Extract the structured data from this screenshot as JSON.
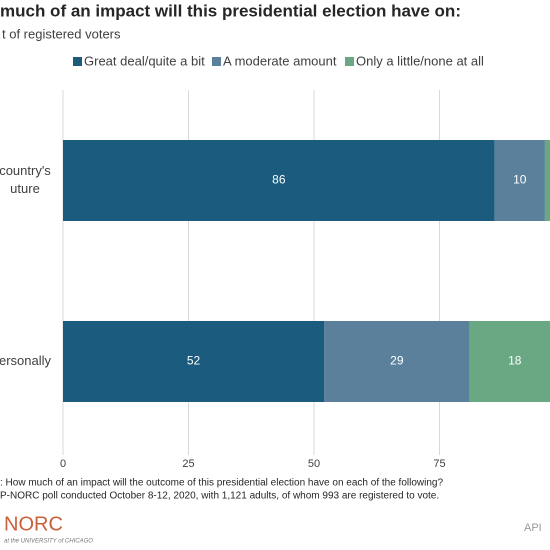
{
  "chart_data": {
    "type": "stacked-bar-horizontal",
    "title": "much of an impact will this presidential election have on:",
    "subtitle": "t of registered voters",
    "categories": [
      [
        "country's",
        "uture"
      ],
      [
        "ersonally"
      ]
    ],
    "series": [
      {
        "name": "Great deal/quite a bit",
        "color": "#1a5b7e",
        "values": [
          86,
          52
        ]
      },
      {
        "name": "A moderate amount",
        "color": "#5b809b",
        "values": [
          10,
          29
        ]
      },
      {
        "name": "Only a little/none at all",
        "color": "#6aa884",
        "values": [
          3,
          18
        ]
      }
    ],
    "xlim": [
      0,
      100
    ],
    "xticks": [
      0,
      25,
      50,
      75
    ],
    "grid": true,
    "legend": "top",
    "notes": [
      ": How much of an impact will the outcome of this presidential election have on each of the following?",
      "P-NORC poll conducted October 8-12, 2020, with 1,121 adults, of whom 993 are registered to vote."
    ],
    "logo": "NORC",
    "logo_sub": "at the UNIVERSITY of CHICAGO",
    "corner": "API"
  }
}
